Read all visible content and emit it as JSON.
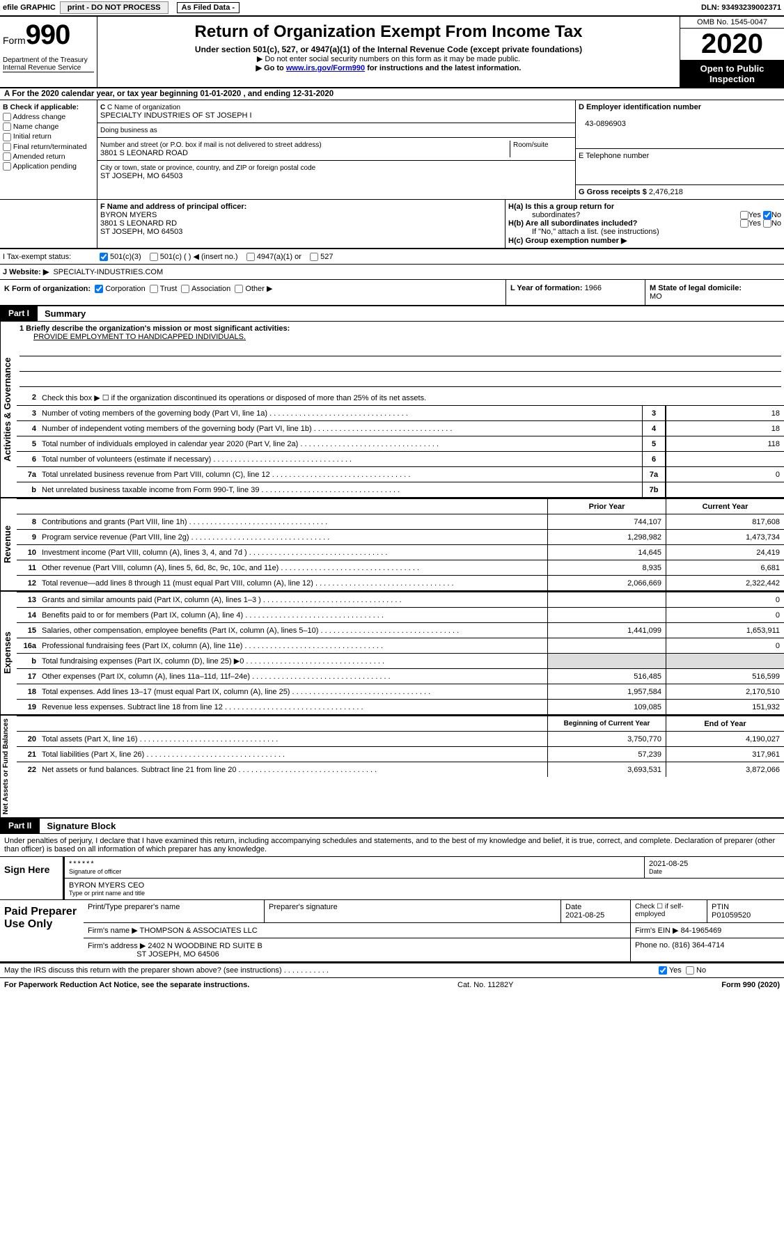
{
  "topbar": {
    "efile": "efile GRAPHIC",
    "print": "print - DO NOT PROCESS",
    "asfiled": "As Filed Data -",
    "dln": "DLN: 93493239002371"
  },
  "header": {
    "form_prefix": "Form",
    "form_number": "990",
    "dept": "Department of the Treasury",
    "irs": "Internal Revenue Service",
    "title": "Return of Organization Exempt From Income Tax",
    "subtitle": "Under section 501(c), 527, or 4947(a)(1) of the Internal Revenue Code (except private foundations)",
    "note1": "▶ Do not enter social security numbers on this form as it may be made public.",
    "note2_pre": "▶ Go to ",
    "note2_link": "www.irs.gov/Form990",
    "note2_post": " for instructions and the latest information.",
    "omb": "OMB No. 1545-0047",
    "year": "2020",
    "inspect1": "Open to Public",
    "inspect2": "Inspection"
  },
  "row_a": "A   For the 2020 calendar year, or tax year beginning 01-01-2020   , and ending 12-31-2020",
  "col_b": {
    "title": "B Check if applicable:",
    "opts": [
      "Address change",
      "Name change",
      "Initial return",
      "Final return/terminated",
      "Amended return",
      "Application pending"
    ]
  },
  "org": {
    "c_label": "C Name of organization",
    "name": "SPECIALTY INDUSTRIES OF ST JOSEPH I",
    "dba_label": "Doing business as",
    "addr_label": "Number and street (or P.O. box if mail is not delivered to street address)",
    "room_label": "Room/suite",
    "addr": "3801 S LEONARD ROAD",
    "city_label": "City or town, state or province, country, and ZIP or foreign postal code",
    "city": "ST JOSEPH, MO  64503"
  },
  "col_de": {
    "d_label": "D Employer identification number",
    "ein": "43-0896903",
    "e_label": "E Telephone number",
    "g_label": "G Gross receipts $ ",
    "g_val": "2,476,218"
  },
  "f": {
    "label": "F   Name and address of principal officer:",
    "name": "BYRON MYERS",
    "addr1": "3801 S LEONARD RD",
    "addr2": "ST JOSEPH, MO  64503"
  },
  "h": {
    "ha": "H(a)  Is this a group return for",
    "ha2": "subordinates?",
    "hb": "H(b)  Are all subordinates included?",
    "hb2": "If \"No,\" attach a list. (see instructions)",
    "hc": "H(c)  Group exemption number ▶",
    "yes": "Yes",
    "no": "No"
  },
  "row_i": {
    "label": "I   Tax-exempt status:",
    "o1": "501(c)(3)",
    "o2": "501(c) (   ) ◀ (insert no.)",
    "o3": "4947(a)(1) or",
    "o4": "527"
  },
  "row_j": {
    "label": "J   Website: ▶",
    "val": "SPECIALTY-INDUSTRIES.COM"
  },
  "row_k": {
    "label": "K Form of organization:",
    "o1": "Corporation",
    "o2": "Trust",
    "o3": "Association",
    "o4": "Other ▶"
  },
  "row_l": {
    "label": "L Year of formation: ",
    "val": "1966"
  },
  "row_m": {
    "label": "M State of legal domicile:",
    "val": "MO"
  },
  "part1": {
    "tag": "Part I",
    "title": "Summary"
  },
  "vtabs": {
    "ag": "Activities & Governance",
    "rev": "Revenue",
    "exp": "Expenses",
    "na": "Net Assets or\nFund Balances"
  },
  "mission": {
    "q": "1 Briefly describe the organization's mission or most significant activities:",
    "text": "PROVIDE EMPLOYMENT TO HANDICAPPED INDIVIDUALS."
  },
  "lines_ag": [
    {
      "n": "2",
      "t": "Check this box ▶ ☐ if the organization discontinued its operations or disposed of more than 25% of its net assets."
    },
    {
      "n": "3",
      "t": "Number of voting members of the governing body (Part VI, line 1a)",
      "box": "3",
      "v": "18"
    },
    {
      "n": "4",
      "t": "Number of independent voting members of the governing body (Part VI, line 1b)",
      "box": "4",
      "v": "18"
    },
    {
      "n": "5",
      "t": "Total number of individuals employed in calendar year 2020 (Part V, line 2a)",
      "box": "5",
      "v": "118"
    },
    {
      "n": "6",
      "t": "Total number of volunteers (estimate if necessary)",
      "box": "6",
      "v": ""
    },
    {
      "n": "7a",
      "t": "Total unrelated business revenue from Part VIII, column (C), line 12",
      "box": "7a",
      "v": "0"
    },
    {
      "n": "b",
      "t": "Net unrelated business taxable income from Form 990-T, line 39",
      "box": "7b",
      "v": ""
    }
  ],
  "pycy_hdr": {
    "py": "Prior Year",
    "cy": "Current Year"
  },
  "lines_rev": [
    {
      "n": "8",
      "t": "Contributions and grants (Part VIII, line 1h)",
      "py": "744,107",
      "cy": "817,608"
    },
    {
      "n": "9",
      "t": "Program service revenue (Part VIII, line 2g)",
      "py": "1,298,982",
      "cy": "1,473,734"
    },
    {
      "n": "10",
      "t": "Investment income (Part VIII, column (A), lines 3, 4, and 7d )",
      "py": "14,645",
      "cy": "24,419"
    },
    {
      "n": "11",
      "t": "Other revenue (Part VIII, column (A), lines 5, 6d, 8c, 9c, 10c, and 11e)",
      "py": "8,935",
      "cy": "6,681"
    },
    {
      "n": "12",
      "t": "Total revenue—add lines 8 through 11 (must equal Part VIII, column (A), line 12)",
      "py": "2,066,669",
      "cy": "2,322,442"
    }
  ],
  "lines_exp": [
    {
      "n": "13",
      "t": "Grants and similar amounts paid (Part IX, column (A), lines 1–3 )",
      "py": "",
      "cy": "0"
    },
    {
      "n": "14",
      "t": "Benefits paid to or for members (Part IX, column (A), line 4)",
      "py": "",
      "cy": "0"
    },
    {
      "n": "15",
      "t": "Salaries, other compensation, employee benefits (Part IX, column (A), lines 5–10)",
      "py": "1,441,099",
      "cy": "1,653,911"
    },
    {
      "n": "16a",
      "t": "Professional fundraising fees (Part IX, column (A), line 11e)",
      "py": "",
      "cy": "0"
    },
    {
      "n": "b",
      "t": "Total fundraising expenses (Part IX, column (D), line 25) ▶0",
      "py": "grey",
      "cy": "grey"
    },
    {
      "n": "17",
      "t": "Other expenses (Part IX, column (A), lines 11a–11d, 11f–24e)",
      "py": "516,485",
      "cy": "516,599"
    },
    {
      "n": "18",
      "t": "Total expenses. Add lines 13–17 (must equal Part IX, column (A), line 25)",
      "py": "1,957,584",
      "cy": "2,170,510"
    },
    {
      "n": "19",
      "t": "Revenue less expenses. Subtract line 18 from line 12",
      "py": "109,085",
      "cy": "151,932"
    }
  ],
  "na_hdr": {
    "py": "Beginning of Current Year",
    "cy": "End of Year"
  },
  "lines_na": [
    {
      "n": "20",
      "t": "Total assets (Part X, line 16)",
      "py": "3,750,770",
      "cy": "4,190,027"
    },
    {
      "n": "21",
      "t": "Total liabilities (Part X, line 26)",
      "py": "57,239",
      "cy": "317,961"
    },
    {
      "n": "22",
      "t": "Net assets or fund balances. Subtract line 21 from line 20",
      "py": "3,693,531",
      "cy": "3,872,066"
    }
  ],
  "part2": {
    "tag": "Part II",
    "title": "Signature Block"
  },
  "sig": {
    "intro": "Under penalties of perjury, I declare that I have examined this return, including accompanying schedules and statements, and to the best of my knowledge and belief, it is true, correct, and complete. Declaration of preparer (other than officer) is based on all information of which preparer has any knowledge.",
    "here": "Sign Here",
    "stars": "******",
    "sig_label": "Signature of officer",
    "date": "2021-08-25",
    "date_label": "Date",
    "name": "BYRON MYERS CEO",
    "name_label": "Type or print name and title"
  },
  "paid": {
    "label": "Paid Preparer Use Only",
    "c1": "Print/Type preparer's name",
    "c2": "Preparer's signature",
    "c3": "Date",
    "c3v": "2021-08-25",
    "c4": "Check ☐ if self-employed",
    "c5": "PTIN",
    "c5v": "P01059520",
    "firm_label": "Firm's name    ▶",
    "firm": "THOMPSON & ASSOCIATES LLC",
    "ein_label": "Firm's EIN ▶",
    "ein": "84-1965469",
    "addr_label": "Firm's address ▶",
    "addr1": "2402 N WOODBINE RD SUITE B",
    "addr2": "ST JOSEPH, MO  64506",
    "phone_label": "Phone no.",
    "phone": "(816) 364-4714"
  },
  "discuss": {
    "q": "May the IRS discuss this return with the preparer shown above? (see instructions)",
    "yes": "Yes",
    "no": "No"
  },
  "footer": {
    "left": "For Paperwork Reduction Act Notice, see the separate instructions.",
    "mid": "Cat. No. 11282Y",
    "right_pre": "Form ",
    "right_form": "990",
    "right_post": " (2020)"
  }
}
